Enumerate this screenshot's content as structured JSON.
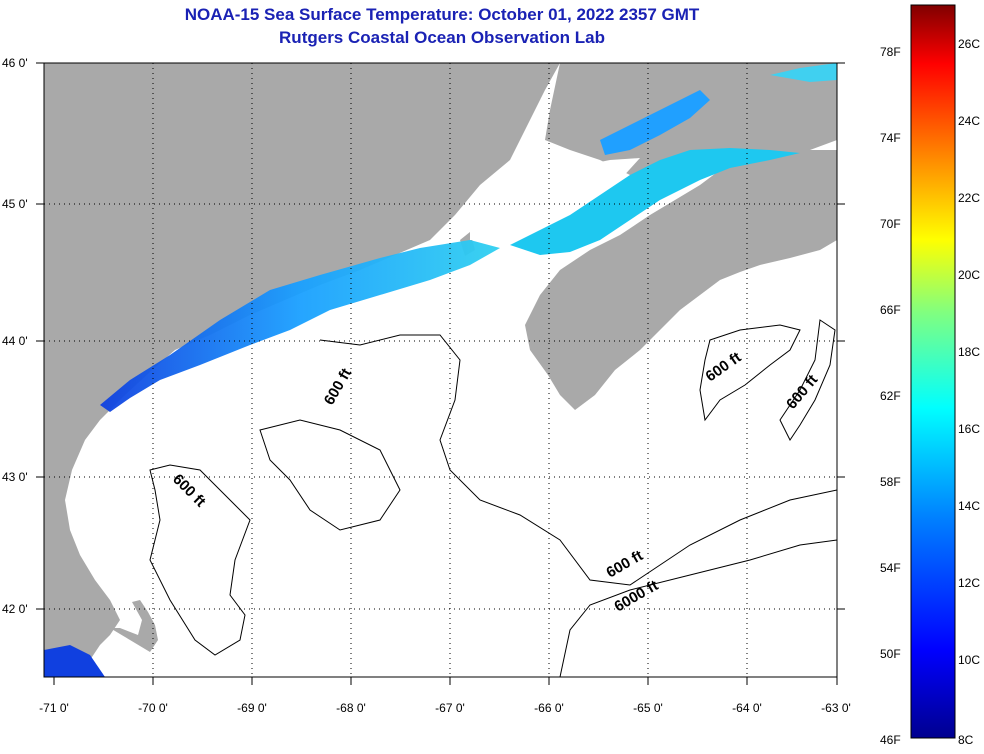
{
  "title": {
    "line1": "NOAA-15 Sea Surface Temperature:  October 01, 2022 2357 GMT",
    "line2": "Rutgers Coastal Ocean Observation Lab"
  },
  "map": {
    "lat_labels": [
      "46 0'",
      "45 0'",
      "44 0'",
      "43 0'",
      "42 0'"
    ],
    "lon_labels": [
      "-71 0'",
      "-70 0'",
      "-69 0'",
      "-68 0'",
      "-67 0'",
      "-66 0'",
      "-65 0'",
      "-64 0'",
      "-63 0'"
    ],
    "contour_labels": {
      "c1": "600 ft",
      "c2": "600 ft",
      "c3": "600 ft",
      "c4": "600 ft",
      "c5": "600 ft",
      "c6": "6000 ft"
    },
    "colors": {
      "land": "#a9a9a9",
      "ocean": "#ffffff",
      "grid": "#000000"
    }
  },
  "colorbar": {
    "f_labels": [
      "78F",
      "74F",
      "70F",
      "66F",
      "62F",
      "58F",
      "54F",
      "50F",
      "46F"
    ],
    "c_labels": [
      "26C",
      "24C",
      "22C",
      "20C",
      "18C",
      "16C",
      "14C",
      "12C",
      "10C",
      "8C"
    ],
    "gradient": [
      "#00008f",
      "#0000ff",
      "#0080ff",
      "#00ffff",
      "#80ff80",
      "#ffff00",
      "#ff8000",
      "#ff0000",
      "#800000"
    ]
  }
}
